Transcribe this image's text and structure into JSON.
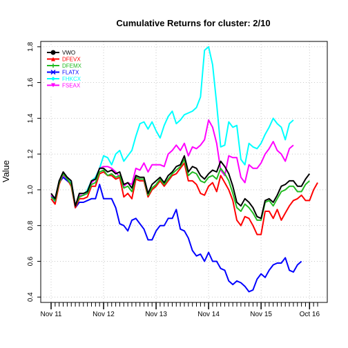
{
  "chart_data": {
    "type": "line",
    "title": "Cumulative Returns for cluster: 2/10",
    "xlabel": "",
    "ylabel": "Value",
    "ylim": [
      0.4,
      1.8
    ],
    "y_ticks": [
      "0.4",
      "0.6",
      "0.8",
      "1.0",
      "1.2",
      "1.4",
      "1.6",
      "1.8"
    ],
    "x_ticks": [
      {
        "index": 0,
        "label": "Nov 11"
      },
      {
        "index": 13,
        "label": "Nov 12"
      },
      {
        "index": 26,
        "label": "Nov 13"
      },
      {
        "index": 39,
        "label": "Nov 14"
      },
      {
        "index": 52,
        "label": "Nov 15"
      },
      {
        "index": 64,
        "label": "Oct 16"
      }
    ],
    "grid": true,
    "legend_position": "top-left",
    "series": [
      {
        "name": "VWO",
        "color": "#000000",
        "marker": "circle",
        "values": [
          0.98,
          0.95,
          1.05,
          1.1,
          1.07,
          1.05,
          0.91,
          0.98,
          0.98,
          0.99,
          1.05,
          1.06,
          1.12,
          1.12,
          1.1,
          1.11,
          1.09,
          1.1,
          1.03,
          1.04,
          1.01,
          1.08,
          1.07,
          1.07,
          0.98,
          1.03,
          1.05,
          1.07,
          1.04,
          1.08,
          1.1,
          1.13,
          1.14,
          1.19,
          1.1,
          1.13,
          1.12,
          1.08,
          1.06,
          1.09,
          1.11,
          1.1,
          1.16,
          1.13,
          1.09,
          1.02,
          0.93,
          0.91,
          0.95,
          0.93,
          0.9,
          0.85,
          0.84,
          0.94,
          0.95,
          0.93,
          0.97,
          1.02,
          1.03,
          1.05,
          1.05,
          1.02,
          1.02,
          1.06,
          1.09
        ]
      },
      {
        "name": "DFEVX",
        "color": "#ff0000",
        "marker": "triangle-up",
        "values": [
          0.95,
          0.92,
          1.03,
          1.09,
          1.06,
          1.02,
          0.9,
          0.95,
          0.95,
          0.96,
          1.02,
          1.02,
          1.09,
          1.1,
          1.08,
          1.08,
          1.06,
          1.07,
          0.96,
          0.98,
          0.95,
          1.06,
          1.05,
          1.05,
          0.96,
          1.0,
          1.02,
          1.05,
          1.02,
          1.05,
          1.08,
          1.09,
          1.12,
          1.15,
          1.05,
          1.05,
          1.03,
          0.98,
          0.97,
          1.02,
          1.04,
          0.99,
          1.08,
          1.04,
          1.0,
          0.94,
          0.83,
          0.8,
          0.85,
          0.84,
          0.8,
          0.75,
          0.75,
          0.88,
          0.88,
          0.84,
          0.89,
          0.83,
          0.87,
          0.91,
          0.94,
          0.95,
          0.97,
          0.94,
          0.94,
          1.0,
          1.04
        ]
      },
      {
        "name": "DFEMX",
        "color": "#22bb22",
        "marker": "plus",
        "values": [
          0.96,
          0.94,
          1.04,
          1.09,
          1.06,
          1.03,
          0.91,
          0.96,
          0.97,
          0.98,
          1.03,
          1.04,
          1.1,
          1.11,
          1.08,
          1.09,
          1.07,
          1.08,
          1.01,
          1.02,
          0.99,
          1.07,
          1.06,
          1.06,
          0.97,
          1.01,
          1.03,
          1.06,
          1.03,
          1.06,
          1.09,
          1.11,
          1.13,
          1.17,
          1.08,
          1.1,
          1.09,
          1.05,
          1.04,
          1.07,
          1.08,
          1.06,
          1.12,
          1.09,
          1.05,
          0.98,
          0.9,
          0.88,
          0.92,
          0.9,
          0.87,
          0.83,
          0.83,
          0.93,
          0.94,
          0.91,
          0.95,
          0.99,
          1.0,
          1.02,
          1.02,
          0.99,
          0.99,
          1.03,
          1.05
        ]
      },
      {
        "name": "FLATX",
        "color": "#0000ff",
        "marker": "x",
        "values": [
          0.96,
          0.95,
          1.04,
          1.07,
          1.05,
          1.03,
          0.9,
          0.93,
          0.93,
          0.94,
          0.95,
          0.95,
          1.03,
          0.95,
          0.95,
          0.95,
          0.9,
          0.81,
          0.8,
          0.77,
          0.83,
          0.84,
          0.81,
          0.78,
          0.72,
          0.72,
          0.77,
          0.8,
          0.8,
          0.84,
          0.84,
          0.89,
          0.78,
          0.77,
          0.73,
          0.66,
          0.63,
          0.64,
          0.6,
          0.65,
          0.6,
          0.6,
          0.56,
          0.55,
          0.49,
          0.47,
          0.49,
          0.48,
          0.46,
          0.43,
          0.44,
          0.5,
          0.53,
          0.51,
          0.55,
          0.58,
          0.59,
          0.59,
          0.62,
          0.55,
          0.54,
          0.58,
          0.6
        ]
      },
      {
        "name": "FHKCX",
        "color": "#00ffff",
        "marker": "diamond",
        "values": [
          0.97,
          0.93,
          1.05,
          1.08,
          1.06,
          1.04,
          0.91,
          0.97,
          0.97,
          1.0,
          1.05,
          1.07,
          1.12,
          1.19,
          1.18,
          1.14,
          1.2,
          1.22,
          1.16,
          1.19,
          1.22,
          1.3,
          1.37,
          1.38,
          1.34,
          1.38,
          1.33,
          1.29,
          1.36,
          1.41,
          1.44,
          1.37,
          1.39,
          1.42,
          1.43,
          1.44,
          1.46,
          1.52,
          1.78,
          1.8,
          1.7,
          1.48,
          1.24,
          1.25,
          1.38,
          1.35,
          1.36,
          1.17,
          1.14,
          1.26,
          1.24,
          1.23,
          1.26,
          1.31,
          1.35,
          1.4,
          1.37,
          1.35,
          1.28,
          1.37,
          1.39
        ]
      },
      {
        "name": "FSEAX",
        "color": "#ff00ff",
        "marker": "triangle-down",
        "values": [
          0.97,
          0.94,
          1.04,
          1.08,
          1.06,
          1.03,
          0.91,
          0.97,
          0.97,
          0.98,
          1.04,
          1.06,
          1.12,
          1.13,
          1.13,
          1.12,
          1.1,
          1.07,
          1.02,
          1.04,
          1.03,
          1.12,
          1.11,
          1.15,
          1.1,
          1.14,
          1.14,
          1.14,
          1.13,
          1.2,
          1.22,
          1.25,
          1.22,
          1.26,
          1.19,
          1.24,
          1.23,
          1.25,
          1.28,
          1.39,
          1.35,
          1.26,
          1.11,
          1.08,
          1.19,
          1.18,
          1.18,
          1.07,
          1.04,
          1.14,
          1.12,
          1.12,
          1.15,
          1.2,
          1.23,
          1.27,
          1.22,
          1.2,
          1.16,
          1.23,
          1.25
        ]
      }
    ]
  }
}
